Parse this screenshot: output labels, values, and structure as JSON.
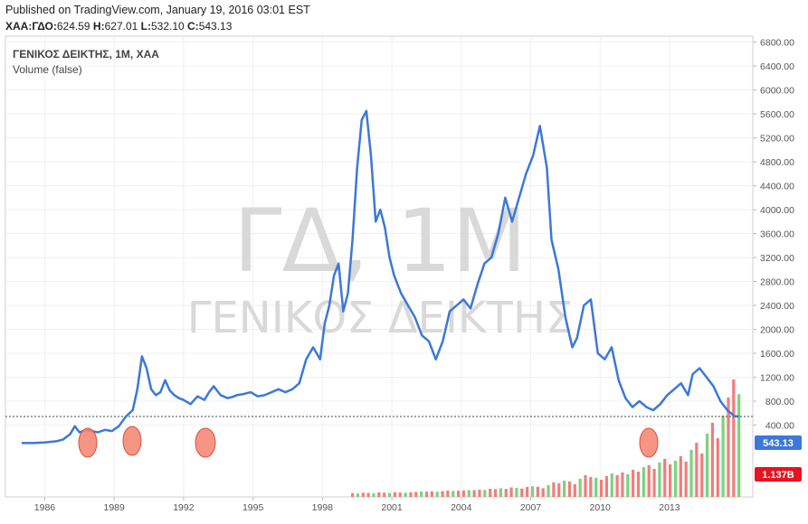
{
  "header": {
    "published": "Published on TradingView.com, January 19, 2016 03:01 EST",
    "symbol": "ΧΑΑ:ΓΔΟ:",
    "open_label": "",
    "open": "624.59",
    "high_label": "H:",
    "high": "627.01",
    "low_label": "L:",
    "low": "532.10",
    "close_label": "C:",
    "close": "543.13"
  },
  "legend": {
    "title": "ΓΕΝΙΚΟΣ ΔΕΙΚΤΗΣ, 1M, ΧΑΑ",
    "volume": "Volume (false)"
  },
  "watermark": {
    "line1": "ΓΔ, 1M",
    "line2": "ΓΕΝΙΚΟΣ ΔΕΙΚΤΗΣ"
  },
  "badges": {
    "price": "543.13",
    "volume": "1.137B"
  },
  "colors": {
    "line": "#3c78d8",
    "price_badge": "#3c78d8",
    "volume_badge": "#e8131f",
    "vol_up": "#6ccf6c",
    "vol_down": "#f26e6e",
    "marker_fill": "#f4826f",
    "marker_stroke": "#d9533d"
  },
  "chart_data": {
    "type": "line",
    "title": "ΓΕΝΙΚΟΣ ΔΕΙΚΤΗΣ, 1M, ΧΑΑ",
    "xlabel": "",
    "ylabel": "",
    "x_ticks": [
      "1986",
      "1989",
      "1992",
      "1995",
      "1998",
      "2001",
      "2004",
      "2007",
      "2010",
      "2013"
    ],
    "y_ticks": [
      "400.00",
      "800.00",
      "1200.00",
      "1600.00",
      "2000.00",
      "2400.00",
      "2800.00",
      "3200.00",
      "3600.00",
      "4000.00",
      "4400.00",
      "4800.00",
      "5200.00",
      "5600.00",
      "6000.00",
      "6400.00",
      "6800.00"
    ],
    "ylim": [
      -800,
      6900
    ],
    "xlim": [
      1984.3,
      2016.6
    ],
    "last_price": 543.13,
    "series": [
      {
        "x": [
          1985.0,
          1985.5,
          1986.0,
          1986.5,
          1986.8,
          1987.1,
          1987.3,
          1987.5,
          1987.8,
          1988.0,
          1988.3,
          1988.6,
          1988.9,
          1989.2,
          1989.5,
          1989.8,
          1990.0,
          1990.2,
          1990.4,
          1990.6,
          1990.8,
          1991.0,
          1991.2,
          1991.4,
          1991.6,
          1991.8,
          1992.0,
          1992.3,
          1992.6,
          1992.9,
          1993.1,
          1993.3,
          1993.6,
          1993.9,
          1994.1,
          1994.3,
          1994.6,
          1994.9,
          1995.2,
          1995.5,
          1995.8,
          1996.1,
          1996.4,
          1996.7,
          1997.0,
          1997.3,
          1997.6,
          1997.9,
          1998.1,
          1998.3,
          1998.5,
          1998.7,
          1998.9,
          1999.1,
          1999.3,
          1999.5,
          1999.7,
          1999.9,
          2000.1,
          2000.3,
          2000.5,
          2000.7,
          2000.9,
          2001.1,
          2001.4,
          2001.7,
          2002.0,
          2002.3,
          2002.6,
          2002.9,
          2003.2,
          2003.5,
          2003.8,
          2004.1,
          2004.4,
          2004.7,
          2005.0,
          2005.3,
          2005.6,
          2005.9,
          2006.2,
          2006.5,
          2006.8,
          2007.1,
          2007.4,
          2007.7,
          2007.9,
          2008.2,
          2008.5,
          2008.8,
          2009.0,
          2009.3,
          2009.6,
          2009.9,
          2010.2,
          2010.5,
          2010.8,
          2011.1,
          2011.4,
          2011.7,
          2012.0,
          2012.3,
          2012.6,
          2012.9,
          2013.2,
          2013.5,
          2013.8,
          2014.0,
          2014.3,
          2014.6,
          2014.9,
          2015.2,
          2015.5,
          2015.8,
          2016.0
        ],
        "y": [
          100,
          100,
          110,
          130,
          160,
          250,
          380,
          280,
          320,
          300,
          280,
          320,
          300,
          380,
          540,
          650,
          1000,
          1550,
          1350,
          1000,
          900,
          950,
          1150,
          980,
          900,
          850,
          820,
          750,
          880,
          820,
          950,
          1050,
          900,
          850,
          870,
          900,
          920,
          950,
          880,
          900,
          950,
          1000,
          950,
          1000,
          1100,
          1500,
          1700,
          1500,
          2100,
          2400,
          2900,
          3100,
          2300,
          2600,
          3500,
          4700,
          5500,
          5650,
          4900,
          3800,
          4000,
          3700,
          3200,
          2900,
          2600,
          2400,
          2200,
          1900,
          1800,
          1500,
          1800,
          2300,
          2400,
          2500,
          2350,
          2750,
          3100,
          3200,
          3600,
          4200,
          3800,
          4200,
          4600,
          4900,
          5400,
          4700,
          3500,
          3000,
          2200,
          1700,
          1850,
          2400,
          2500,
          1600,
          1500,
          1700,
          1150,
          850,
          700,
          800,
          700,
          650,
          750,
          900,
          1000,
          1100,
          900,
          1250,
          1350,
          1200,
          1050,
          800,
          650,
          550,
          543
        ]
      }
    ],
    "volume": [
      42,
      38,
      46,
      44,
      40,
      50,
      47,
      43,
      52,
      48,
      46,
      50,
      55,
      60,
      58,
      62,
      57,
      64,
      70,
      66,
      68,
      72,
      75,
      74,
      80,
      77,
      90,
      86,
      95,
      88,
      105,
      100,
      92,
      110,
      118,
      112,
      96,
      130,
      160,
      150,
      180,
      170,
      140,
      200,
      240,
      220,
      210,
      190,
      230,
      260,
      240,
      270,
      250,
      300,
      280,
      330,
      350,
      310,
      380,
      420,
      360,
      400,
      450,
      390,
      520,
      600,
      480,
      700,
      820,
      650,
      900,
      1100,
      1300,
      1137
    ]
  }
}
